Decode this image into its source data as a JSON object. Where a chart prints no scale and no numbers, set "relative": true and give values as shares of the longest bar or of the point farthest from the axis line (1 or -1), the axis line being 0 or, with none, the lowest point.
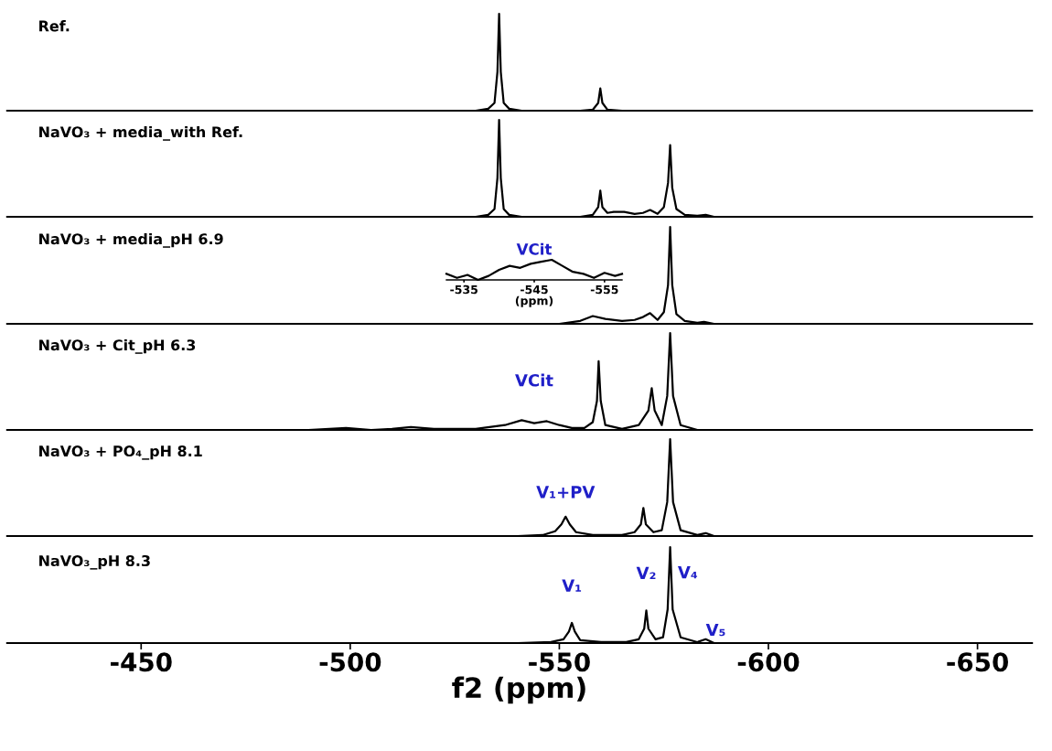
{
  "chart_data": [
    {
      "type": "line",
      "title": "Ref.",
      "relative": true,
      "xlim": [
        -418,
        -663
      ],
      "tick_labels": false,
      "x": [
        -418,
        -530,
        -533,
        -534.5,
        -535.2,
        -535.6,
        -536,
        -536.7,
        -538,
        -541,
        -555,
        -558,
        -559.3,
        -559.8,
        -560.3,
        -561.5,
        -565,
        -663
      ],
      "series": [
        {
          "color": "#000000",
          "values": [
            0,
            0,
            0.02,
            0.08,
            0.4,
            1,
            0.4,
            0.08,
            0.02,
            0,
            0,
            0.01,
            0.08,
            0.23,
            0.08,
            0.01,
            0,
            0
          ]
        }
      ]
    },
    {
      "type": "line",
      "title": "NaVO₃ + media_with Ref.",
      "relative": true,
      "xlim": [
        -418,
        -663
      ],
      "tick_labels": false,
      "x": [
        -418,
        -530,
        -533,
        -534.5,
        -535.2,
        -535.6,
        -536,
        -536.7,
        -538,
        -541,
        -555,
        -558,
        -559.3,
        -559.8,
        -560.3,
        -561.5,
        -563,
        -565.5,
        -568,
        -570,
        -571.7,
        -573.5,
        -575,
        -576,
        -576.5,
        -577,
        -578,
        -580,
        -583,
        -585,
        -587,
        -663
      ],
      "series": [
        {
          "color": "#000000",
          "values": [
            0,
            0,
            0.02,
            0.08,
            0.4,
            1,
            0.4,
            0.08,
            0.02,
            0,
            0,
            0.02,
            0.1,
            0.27,
            0.1,
            0.04,
            0.05,
            0.05,
            0.03,
            0.04,
            0.07,
            0.03,
            0.1,
            0.35,
            0.74,
            0.3,
            0.08,
            0.02,
            0.01,
            0.02,
            0,
            0
          ]
        }
      ]
    },
    {
      "type": "line",
      "title": "NaVO₃ + media_pH 6.9",
      "relative": true,
      "xlim": [
        -418,
        -663
      ],
      "tick_labels": false,
      "x": [
        -418,
        -540,
        -550,
        -555,
        -558,
        -561,
        -565,
        -568,
        -570,
        -571.7,
        -573.5,
        -575,
        -576,
        -576.5,
        -577,
        -578,
        -580,
        -583,
        -584.6,
        -587,
        -663
      ],
      "series": [
        {
          "color": "#000000",
          "values": [
            0,
            0,
            0,
            0.03,
            0.08,
            0.05,
            0.03,
            0.04,
            0.07,
            0.11,
            0.04,
            0.12,
            0.4,
            1,
            0.4,
            0.1,
            0.03,
            0.01,
            0.02,
            0,
            0
          ]
        }
      ]
    },
    {
      "type": "line",
      "title": "NaVO₃ + Cit_pH 6.3",
      "relative": true,
      "xlim": [
        -418,
        -663
      ],
      "tick_labels": false,
      "x": [
        -418,
        -490,
        -499,
        -505,
        -510,
        -514.5,
        -520,
        -530,
        -537,
        -541,
        -544,
        -547,
        -550,
        -553,
        -556,
        -558,
        -559,
        -559.4,
        -559.9,
        -561,
        -565,
        -569,
        -571.3,
        -572.1,
        -572.8,
        -574.5,
        -575.8,
        -576.5,
        -577.2,
        -579,
        -583,
        -663
      ],
      "series": [
        {
          "color": "#000000",
          "values": [
            0,
            0,
            0.02,
            0,
            0.01,
            0.03,
            0.01,
            0.01,
            0.05,
            0.1,
            0.07,
            0.09,
            0.05,
            0.02,
            0.02,
            0.08,
            0.3,
            0.71,
            0.3,
            0.05,
            0.01,
            0.05,
            0.2,
            0.43,
            0.2,
            0.05,
            0.35,
            1,
            0.35,
            0.05,
            0,
            0
          ]
        }
      ],
      "annotations": [
        {
          "text": "VCit",
          "x": -544,
          "y": 0.1
        }
      ]
    },
    {
      "type": "line",
      "title": "NaVO₃ + PO₄_pH 8.1",
      "relative": true,
      "xlim": [
        -418,
        -663
      ],
      "tick_labels": false,
      "x": [
        -418,
        -540,
        -546,
        -549,
        -550.5,
        -551.5,
        -552.5,
        -554,
        -558,
        -565,
        -568,
        -569.5,
        -570.1,
        -570.7,
        -572.5,
        -574.5,
        -575.8,
        -576.5,
        -577.2,
        -579,
        -583,
        -585,
        -587,
        -663
      ],
      "series": [
        {
          "color": "#000000",
          "values": [
            0,
            0,
            0.01,
            0.05,
            0.12,
            0.2,
            0.12,
            0.04,
            0.01,
            0.01,
            0.04,
            0.12,
            0.29,
            0.12,
            0.04,
            0.06,
            0.35,
            1,
            0.35,
            0.06,
            0.01,
            0.03,
            0,
            0
          ]
        }
      ],
      "annotations": [
        {
          "text": "V₁+PV",
          "x": -551.5,
          "y": 0.2
        }
      ]
    },
    {
      "type": "line",
      "title": "NaVO₃_pH 8.3",
      "relative": true,
      "xlim": [
        -418,
        -663
      ],
      "tick_labels": "x",
      "xticks": [
        -450,
        -500,
        -550,
        -600,
        -650
      ],
      "xlabel": "f2 (ppm)",
      "x": [
        -418,
        -540,
        -548,
        -551,
        -552.3,
        -553,
        -553.7,
        -555,
        -560,
        -566,
        -569,
        -570.3,
        -570.8,
        -571.3,
        -573,
        -574.8,
        -575.9,
        -576.5,
        -577.1,
        -579,
        -583,
        -585,
        -587,
        -663
      ],
      "series": [
        {
          "color": "#000000",
          "values": [
            0,
            0,
            0.01,
            0.04,
            0.12,
            0.21,
            0.12,
            0.03,
            0.01,
            0.01,
            0.04,
            0.15,
            0.34,
            0.15,
            0.04,
            0.06,
            0.35,
            1,
            0.35,
            0.06,
            0.01,
            0.04,
            0,
            0
          ]
        }
      ],
      "annotations": [
        {
          "text": "V₁",
          "x": -553,
          "y": 0.21
        },
        {
          "text": "V₂",
          "x": -570.8,
          "y": 0.34
        },
        {
          "text": "V₄",
          "x": -576.5,
          "y": 0.85
        },
        {
          "text": "V₅",
          "x": -585,
          "y": 0.04
        }
      ]
    },
    {
      "type": "line",
      "title": "VCit",
      "relative": true,
      "xlim": [
        -532.5,
        -557.5
      ],
      "tick_labels": "x",
      "xticks": [
        -535,
        -545,
        -555
      ],
      "xlabel": "(ppm)",
      "x": [
        -532.5,
        -534,
        -535.5,
        -537,
        -538.5,
        -540,
        -541.5,
        -543,
        -544.5,
        -546,
        -547.5,
        -549,
        -550.5,
        -552,
        -553.5,
        -555,
        -556.5,
        -557.5
      ],
      "series": [
        {
          "color": "#000000",
          "values": [
            0.3,
            0.1,
            0.25,
            0,
            0.2,
            0.5,
            0.7,
            0.6,
            0.8,
            0.9,
            1,
            0.7,
            0.4,
            0.3,
            0.1,
            0.35,
            0.2,
            0.3
          ]
        }
      ]
    }
  ]
}
